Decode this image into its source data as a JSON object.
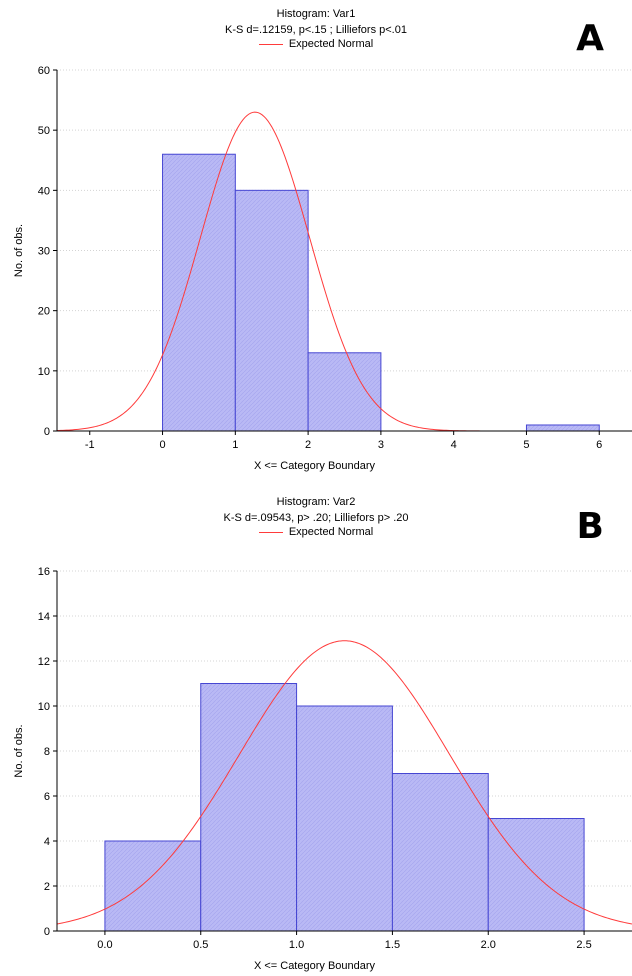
{
  "chart_data": [
    {
      "type": "bar",
      "panel_label": "A",
      "title": "Histogram: Var1",
      "subtitle": "K-S d=.12159, p<.15 ; Lilliefors p<.01",
      "legend": [
        {
          "name": "Expected Normal",
          "color": "#ff3b3b"
        }
      ],
      "xlabel": "X <= Category Boundary",
      "ylabel": "No. of obs.",
      "xlim": [
        -1.45,
        6.45
      ],
      "ylim": [
        0,
        60
      ],
      "xticks": [
        "-1",
        "0",
        "1",
        "2",
        "3",
        "4",
        "5",
        "6"
      ],
      "yticks": [
        "0",
        "10",
        "20",
        "30",
        "40",
        "50",
        "60"
      ],
      "bins": [
        {
          "from": 0,
          "to": 1,
          "value": 46
        },
        {
          "from": 1,
          "to": 2,
          "value": 40
        },
        {
          "from": 2,
          "to": 3,
          "value": 13
        },
        {
          "from": 5,
          "to": 6,
          "value": 1
        }
      ],
      "normal_curve": {
        "mean": 1.27,
        "sd": 0.75,
        "peak": 53
      },
      "bar_color": "#b9b9f5",
      "bar_edge": "#4646d2"
    },
    {
      "type": "bar",
      "panel_label": "B",
      "title": "Histogram: Var2",
      "subtitle": "K-S d=.09543, p> .20; Lilliefors p> .20",
      "legend": [
        {
          "name": "Expected Normal",
          "color": "#ff3b3b"
        }
      ],
      "xlabel": "X <= Category Boundary",
      "ylabel": "No. of obs.",
      "xlim": [
        -0.25,
        2.75
      ],
      "ylim": [
        0,
        16
      ],
      "xticks": [
        "0.0",
        "0.5",
        "1.0",
        "1.5",
        "2.0",
        "2.5"
      ],
      "yticks": [
        "0",
        "2",
        "4",
        "6",
        "8",
        "10",
        "12",
        "14",
        "16"
      ],
      "bins": [
        {
          "from": 0.0,
          "to": 0.5,
          "value": 4
        },
        {
          "from": 0.5,
          "to": 1.0,
          "value": 11
        },
        {
          "from": 1.0,
          "to": 1.5,
          "value": 10
        },
        {
          "from": 1.5,
          "to": 2.0,
          "value": 7
        },
        {
          "from": 2.0,
          "to": 2.5,
          "value": 5
        }
      ],
      "normal_curve": {
        "mean": 1.25,
        "sd": 0.55,
        "peak": 12.9
      },
      "bar_color": "#b9b9f5",
      "bar_edge": "#4646d2"
    }
  ]
}
